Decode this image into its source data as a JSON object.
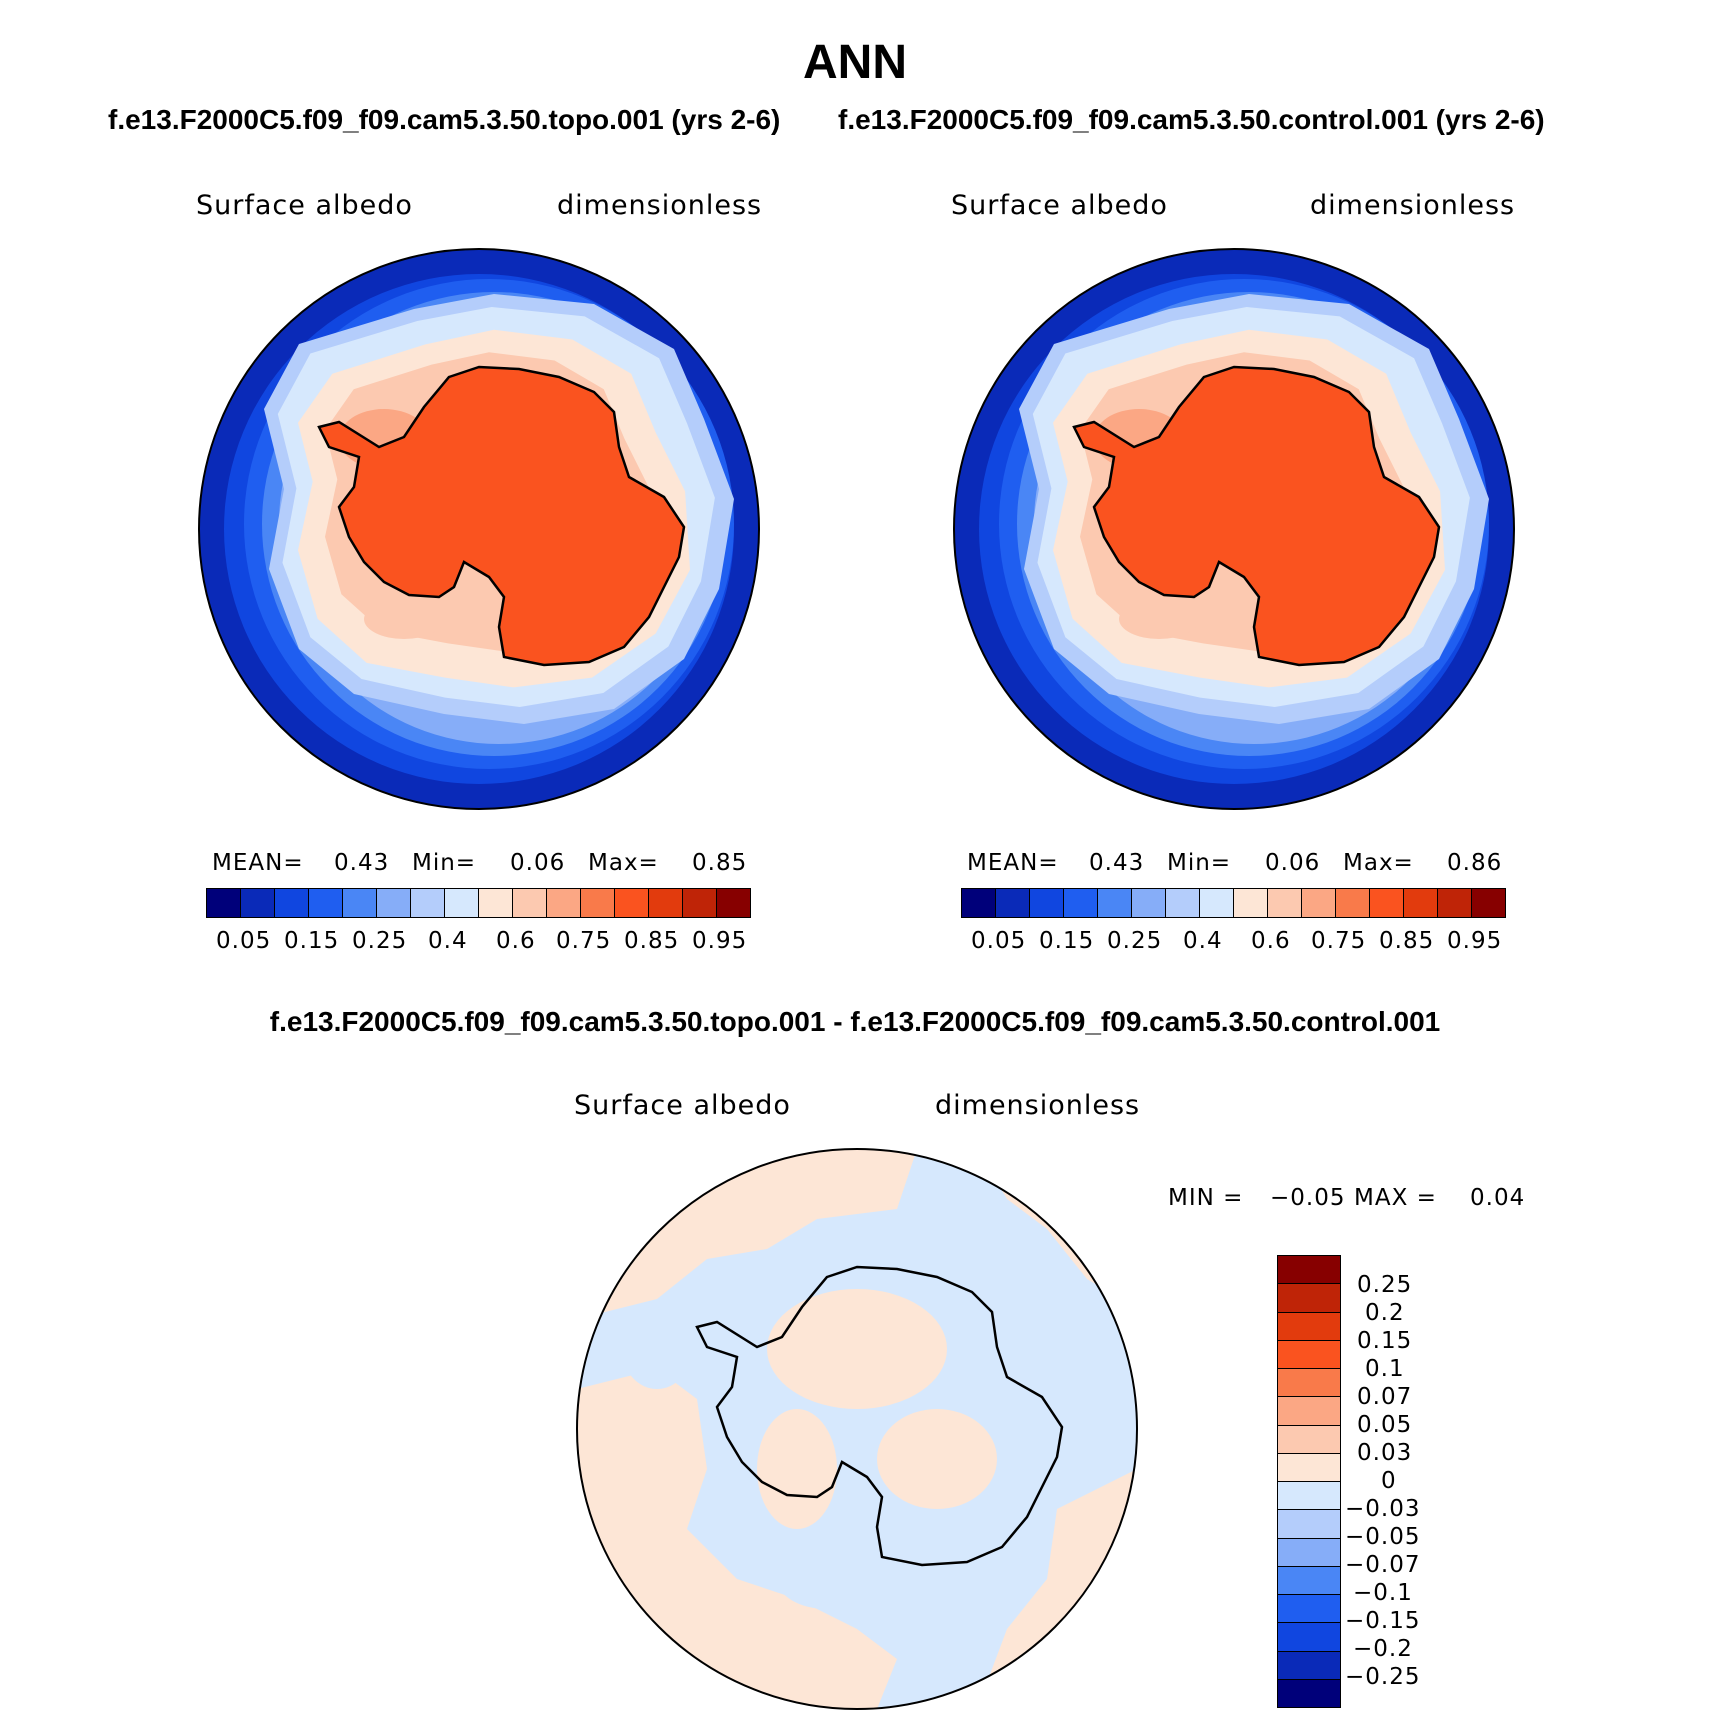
{
  "page_title": "ANN",
  "colors": {
    "abs_levels": [
      "#00007a",
      "#0a2ab8",
      "#1046e0",
      "#1f5ef0",
      "#4a86f5",
      "#86adf8",
      "#b4cdfb",
      "#d6e8fd",
      "#fde6d6",
      "#fcc9b0",
      "#fba784",
      "#f97a4a",
      "#fa531f",
      "#e23b0d",
      "#bf2407",
      "#870000"
    ],
    "diff_levels": [
      "#00007a",
      "#0a2ab8",
      "#1046e0",
      "#1f5ef0",
      "#4a86f5",
      "#86adf8",
      "#b4cdfb",
      "#d6e8fd",
      "#fde6d6",
      "#fcc9b0",
      "#fba784",
      "#f97a4a",
      "#fa531f",
      "#e23b0d",
      "#bf2407",
      "#870000"
    ]
  },
  "panels": [
    {
      "header": "f.e13.F2000C5.f09_f09.cam5.3.50.topo.001 (yrs 2-6)",
      "variable": "Surface albedo",
      "units": "dimensionless",
      "stats": {
        "mean_label": "MEAN=",
        "mean": "0.43",
        "min_label": "Min=",
        "min": "0.06",
        "max_label": "Max=",
        "max": "0.85"
      },
      "colorbar_labels": [
        "0.05",
        "0.15",
        "0.25",
        "0.4",
        "0.6",
        "0.75",
        "0.85",
        "0.95"
      ]
    },
    {
      "header": "f.e13.F2000C5.f09_f09.cam5.3.50.control.001 (yrs 2-6)",
      "variable": "Surface albedo",
      "units": "dimensionless",
      "stats": {
        "mean_label": "MEAN=",
        "mean": "0.43",
        "min_label": "Min=",
        "min": "0.06",
        "max_label": "Max=",
        "max": "0.86"
      },
      "colorbar_labels": [
        "0.05",
        "0.15",
        "0.25",
        "0.4",
        "0.6",
        "0.75",
        "0.85",
        "0.95"
      ]
    }
  ],
  "diff_panel": {
    "header": "f.e13.F2000C5.f09_f09.cam5.3.50.topo.001 - f.e13.F2000C5.f09_f09.cam5.3.50.control.001",
    "variable": "Surface albedo",
    "units": "dimensionless",
    "stats": {
      "min_label": "MIN =",
      "min": "−0.05",
      "max_label": "MAX =",
      "max": "0.04"
    },
    "colorbar_labels": [
      "0.25",
      "0.2",
      "0.15",
      "0.1",
      "0.07",
      "0.05",
      "0.03",
      "0",
      "−0.03",
      "−0.05",
      "−0.07",
      "−0.1",
      "−0.15",
      "−0.2",
      "−0.25"
    ]
  }
}
